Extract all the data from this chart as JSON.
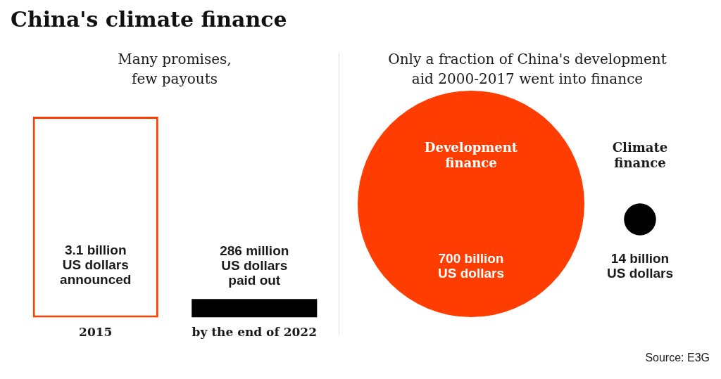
{
  "chart_data": [
    {
      "type": "bar",
      "title": "China's climate finance",
      "subtitle": "Many promises, few payouts",
      "categories": [
        "2015",
        "by the end of 2022"
      ],
      "values": [
        3100000000,
        286000000
      ],
      "colors": [
        "#ff3d00",
        "#000000"
      ],
      "value_labels": [
        "3.1 billion US dollars announced",
        "286 million US dollars paid out"
      ],
      "tick_labels": "x"
    },
    {
      "type": "other",
      "title": "Only a fraction of China's development aid 2000-2017 went into finance",
      "categories": [
        "Development finance",
        "Climate finance"
      ],
      "values": [
        700,
        14
      ],
      "colors": [
        "#ff3d00",
        "#000000"
      ],
      "value_labels": [
        "700 billion US dollars",
        "14 billion US dollars"
      ],
      "annotations": [
        "Source: E3G"
      ]
    }
  ]
}
